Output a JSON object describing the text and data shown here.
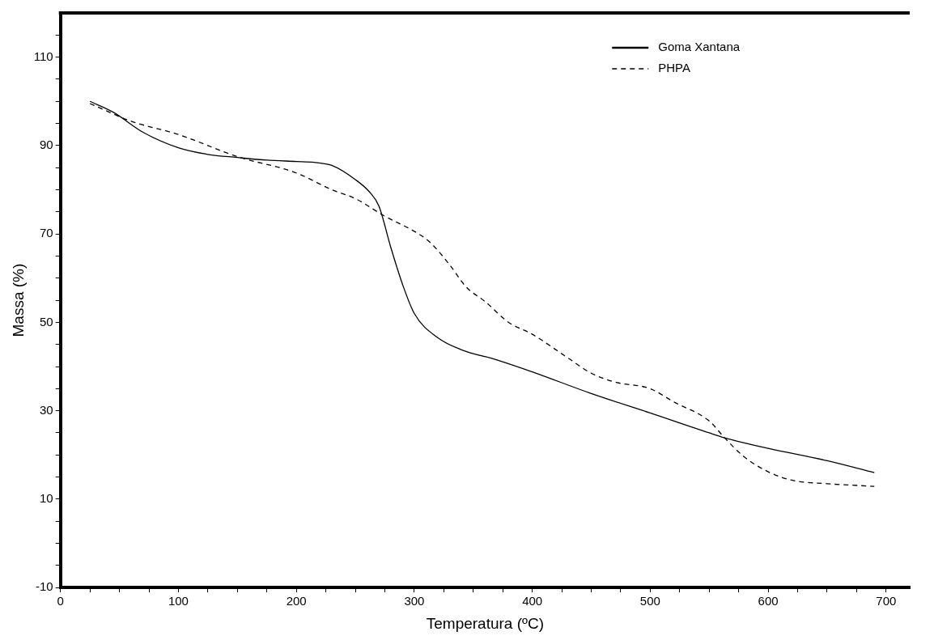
{
  "chart_data": {
    "type": "line",
    "xlabel": "Temperatura (ºC)",
    "ylabel": "Massa (%)",
    "xlim": [
      0,
      720
    ],
    "ylim": [
      -10,
      120
    ],
    "xticks": [
      0,
      {
        "value": 25,
        "label": null
      },
      {
        "value": 50,
        "label": null
      },
      {
        "value": 75,
        "label": null
      },
      100,
      {
        "value": 125,
        "label": null
      },
      {
        "value": 150,
        "label": null
      },
      {
        "value": 175,
        "label": null
      },
      200,
      {
        "value": 225,
        "label": null
      },
      {
        "value": 250,
        "label": null
      },
      {
        "value": 275,
        "label": null
      },
      300,
      {
        "value": 325,
        "label": null
      },
      {
        "value": 350,
        "label": null
      },
      {
        "value": 375,
        "label": null
      },
      400,
      {
        "value": 425,
        "label": null
      },
      {
        "value": 450,
        "label": null
      },
      {
        "value": 475,
        "label": null
      },
      500,
      {
        "value": 525,
        "label": null
      },
      {
        "value": 550,
        "label": null
      },
      {
        "value": 575,
        "label": null
      },
      600,
      {
        "value": 625,
        "label": null
      },
      {
        "value": 650,
        "label": null
      },
      {
        "value": 675,
        "label": null
      },
      700
    ],
    "yticks": [
      -10,
      {
        "value": -5,
        "label": null
      },
      {
        "value": 0,
        "label": null
      },
      {
        "value": 5,
        "label": null
      },
      10,
      {
        "value": 15,
        "label": null
      },
      {
        "value": 20,
        "label": null
      },
      {
        "value": 25,
        "label": null
      },
      30,
      {
        "value": 35,
        "label": null
      },
      {
        "value": 40,
        "label": null
      },
      {
        "value": 45,
        "label": null
      },
      50,
      {
        "value": 55,
        "label": null
      },
      {
        "value": 60,
        "label": null
      },
      {
        "value": 65,
        "label": null
      },
      70,
      {
        "value": 75,
        "label": null
      },
      {
        "value": 80,
        "label": null
      },
      {
        "value": 85,
        "label": null
      },
      90,
      {
        "value": 95,
        "label": null
      },
      {
        "value": 100,
        "label": null
      },
      {
        "value": 105,
        "label": null
      },
      110,
      {
        "value": 115,
        "label": null
      }
    ],
    "grid": false,
    "legend": "top right",
    "series": [
      {
        "name": "Goma Xantana",
        "color": "#000000",
        "line_style": "solid",
        "x": [
          25,
          45,
          70,
          100,
          125,
          150,
          175,
          200,
          215,
          230,
          250,
          262,
          270,
          280,
          290,
          300,
          320,
          340,
          370,
          400,
          450,
          500,
          550,
          563,
          600,
          650,
          690
        ],
        "values": [
          100,
          97.5,
          93,
          89.5,
          88,
          87.3,
          86.7,
          86.4,
          86.2,
          85.5,
          82.3,
          79.5,
          76.3,
          67,
          58.6,
          52,
          46.5,
          43.8,
          41.5,
          38.8,
          33.9,
          29.5,
          25,
          23.9,
          21.5,
          18.7,
          16
        ]
      },
      {
        "name": "PHPA",
        "color": "#000000",
        "line_style": "dashed",
        "x": [
          25,
          60,
          100,
          150,
          200,
          230,
          250,
          275,
          300,
          313,
          330,
          344,
          360,
          380,
          400,
          430,
          450,
          470,
          500,
          520,
          550,
          563,
          580,
          600,
          620,
          650,
          690
        ],
        "values": [
          99.5,
          95.5,
          92.5,
          87.5,
          83.8,
          80,
          78,
          74,
          70.6,
          68.2,
          63,
          58,
          54.7,
          50,
          47.3,
          42,
          38.5,
          36.5,
          35,
          32,
          27.7,
          23.9,
          19.5,
          16.2,
          14.3,
          13.5,
          12.9
        ]
      }
    ]
  }
}
